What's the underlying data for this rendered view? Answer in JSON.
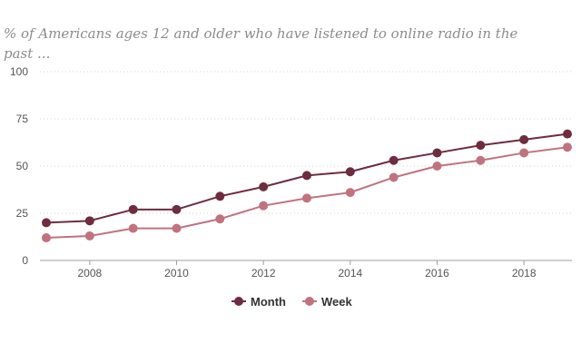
{
  "chart_data": {
    "type": "line",
    "title": "% of Americans ages 12 and older who have listened to online radio in the past ...",
    "x": [
      2007,
      2008,
      2009,
      2010,
      2011,
      2012,
      2013,
      2014,
      2015,
      2016,
      2017,
      2018,
      2019
    ],
    "x_ticks": [
      "2008",
      "2010",
      "2012",
      "2014",
      "2016",
      "2018"
    ],
    "y_ticks": [
      "0",
      "25",
      "50",
      "75",
      "100"
    ],
    "ylim": [
      0,
      100
    ],
    "grid": true,
    "legend_position": "bottom",
    "series": [
      {
        "name": "Month",
        "color": "#6e2c3f",
        "values": [
          20,
          21,
          27,
          27,
          34,
          39,
          45,
          47,
          53,
          57,
          61,
          64,
          67
        ]
      },
      {
        "name": "Week",
        "color": "#c0737f",
        "values": [
          12,
          13,
          17,
          17,
          22,
          29,
          33,
          36,
          44,
          50,
          53,
          57,
          60
        ]
      }
    ]
  }
}
